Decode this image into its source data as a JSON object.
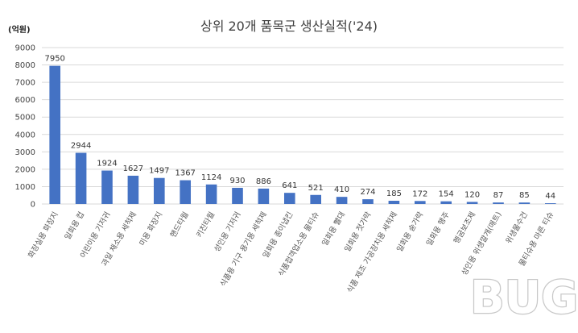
{
  "chart_data": {
    "type": "bar",
    "title": "상위 20개 품목군 생산실적('24)",
    "unit_label": "(억원)",
    "ylim": [
      0,
      9000
    ],
    "yticks": [
      0,
      1000,
      2000,
      3000,
      4000,
      5000,
      6000,
      7000,
      8000,
      9000
    ],
    "grid": true,
    "bar_color": "#4472c4",
    "categories": [
      "화장실용 화장지",
      "일회용 컵",
      "어린이용 기저귀",
      "과일 채소용 세척제",
      "미용 화장지",
      "핸드타월",
      "키친타월",
      "성인용 기저귀",
      "식품용 기구 용기용 세척제",
      "일회용 종이냅킨",
      "식품접객업소용 물티슈",
      "일회용 빨대",
      "일회용 젓가락",
      "식품 제조 가공장치용 세척제",
      "일회용 숟가락",
      "일회용 행주",
      "헹굼보조제",
      "성인용 위생깔개(매트)",
      "위생물수건",
      "물티슈용 마른 티슈"
    ],
    "values": [
      7950,
      2944,
      1924,
      1627,
      1497,
      1367,
      1124,
      930,
      886,
      641,
      521,
      410,
      274,
      185,
      172,
      154,
      120,
      87,
      85,
      44
    ]
  },
  "watermark": {
    "text": "BUG"
  }
}
